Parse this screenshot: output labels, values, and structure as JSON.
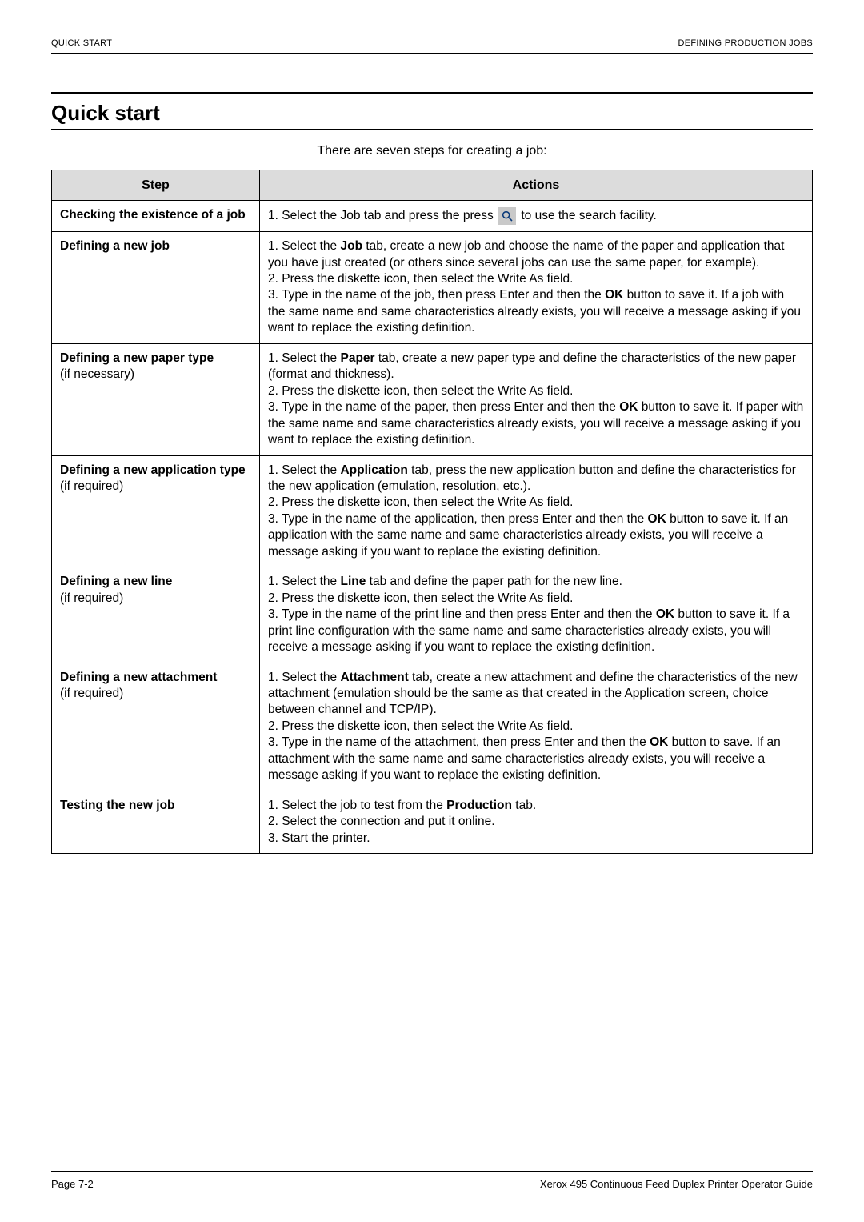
{
  "header": {
    "left": "QUICK START",
    "right": "DEFINING PRODUCTION JOBS"
  },
  "title": "Quick start",
  "intro": "There are seven steps for creating a job:",
  "table": {
    "columns": [
      "Step",
      "Actions"
    ],
    "header_bg": "#dcdcdc",
    "border_color": "#000000",
    "icon_bg": "#c9c9c9",
    "rows": [
      {
        "step_bold": "Checking the existence of a job",
        "step_sub": "",
        "action_pre": "1. Select the Job tab and press the press ",
        "icon": "search-icon",
        "action_post": " to use the search facility."
      },
      {
        "step_bold": "Defining a new job",
        "step_sub": "",
        "action_html": "1. Select the <b>Job</b> tab, create a new job and choose the name of the paper and application that you have just created (or others since several jobs can use the same paper, for example).<br>2. Press the diskette icon, then select the Write As field.<br>3. Type in the name of the job, then press Enter and then the <b>OK</b> button to save it. If a job with the same name and same characteristics already exists, you will receive a message asking if you want to replace the existing definition."
      },
      {
        "step_bold": "Defining a new paper type",
        "step_sub": "(if necessary)",
        "action_html": "1. Select the <b>Paper</b> tab, create a new paper type and define the characteristics of the new paper (format and thickness).<br>2. Press the diskette icon, then select the Write As field.<br>3. Type in the name of the paper, then press Enter and then the <b>OK</b> button to save it. If paper with the same name and same characteristics already exists, you will receive a message asking if you want to replace the existing definition."
      },
      {
        "step_bold": "Defining a new application type",
        "step_sub": "(if required)",
        "action_html": "1. Select the <b>Application</b> tab, press the new application button and define the characteristics for the new application (emulation, resolution, etc.).<br>2. Press the diskette icon, then select the Write As field.<br>3. Type in the name of the application, then press Enter and then the <b>OK</b> button to save it. If an application with the same name and same characteristics already exists, you will receive a message asking if you want to replace the existing definition."
      },
      {
        "step_bold": "Defining a new line",
        "step_sub": "(if required)",
        "action_html": "1. Select the <b>Line</b> tab and define the paper path for the new line.<br>2. Press the diskette icon, then select the Write As field.<br>3. Type in the name of the print line and then press Enter and then the <b>OK</b> button to save it. If a print line configuration with the same name and same characteristics already exists, you will receive a message asking if you want to replace the existing definition."
      },
      {
        "step_bold": "Defining a new attachment",
        "step_sub": "(if required)",
        "action_html": "1. Select the <b>Attachment</b> tab, create a new attachment and define the characteristics of the new attachment (emulation should be the same as that created in the Application screen, choice between channel and TCP/IP).<br>2. Press the diskette icon, then select the Write As field.<br>3. Type in the name of the attachment, then press Enter and then the <b>OK</b> button to save. If an attachment with the same name and same characteristics already exists, you will receive a message asking if you want to replace the existing definition."
      },
      {
        "step_bold": "Testing the new job",
        "step_sub": "",
        "action_html": "1. Select the job to test from the <b>Production</b> tab.<br>2. Select the connection and put it online.<br>3. Start the printer."
      }
    ]
  },
  "footer": {
    "left": "Page 7-2",
    "right": "Xerox 495 Continuous Feed Duplex Printer Operator Guide"
  }
}
